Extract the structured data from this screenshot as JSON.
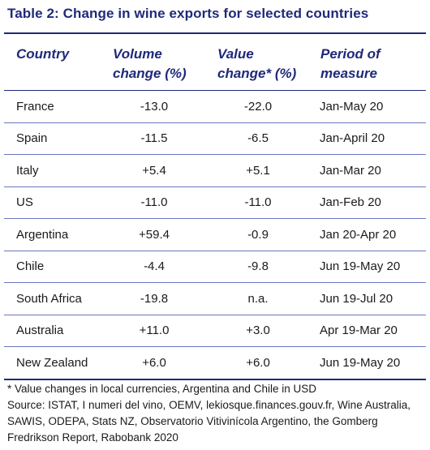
{
  "title": "Table 2: Change in wine exports for selected countries",
  "headers": {
    "country": [
      "Country"
    ],
    "volume": [
      "Volume",
      "change (%)"
    ],
    "value": [
      "Value",
      "change* (%)"
    ],
    "period": [
      "Period of",
      "measure"
    ]
  },
  "rows": [
    {
      "country": "France",
      "volume": "-13.0",
      "value": "-22.0",
      "period": "Jan-May 20"
    },
    {
      "country": "Spain",
      "volume": "-11.5",
      "value": "-6.5",
      "period": "Jan-April 20"
    },
    {
      "country": "Italy",
      "volume": "+5.4",
      "value": "+5.1",
      "period": "Jan-Mar 20"
    },
    {
      "country": "US",
      "volume": "-11.0",
      "value": "-11.0",
      "period": "Jan-Feb 20"
    },
    {
      "country": "Argentina",
      "volume": "+59.4",
      "value": "-0.9",
      "period": "Jan 20-Apr 20"
    },
    {
      "country": "Chile",
      "volume": "-4.4",
      "value": "-9.8",
      "period": "Jun 19-May 20"
    },
    {
      "country": "South Africa",
      "volume": "-19.8",
      "value": "n.a.",
      "period": "Jun 19-Jul 20"
    },
    {
      "country": "Australia",
      "volume": "+11.0",
      "value": "+3.0",
      "period": "Apr 19-Mar 20"
    },
    {
      "country": "New Zealand",
      "volume": "+6.0",
      "value": "+6.0",
      "period": "Jun 19-May 20"
    }
  ],
  "footnote": {
    "note": "* Value changes in local currencies, Argentina and Chile in USD",
    "source": "Source: ISTAT, I numeri del vino, OEMV, lekiosque.finances.gouv.fr, Wine Australia, SAWIS, ODEPA, Stats NZ, Observatorio Vitivinícola Argentino, the Gomberg Fredrikson Report, Rabobank 2020"
  },
  "colors": {
    "title": "#1f2a7a",
    "rule": "#6a76bd"
  }
}
